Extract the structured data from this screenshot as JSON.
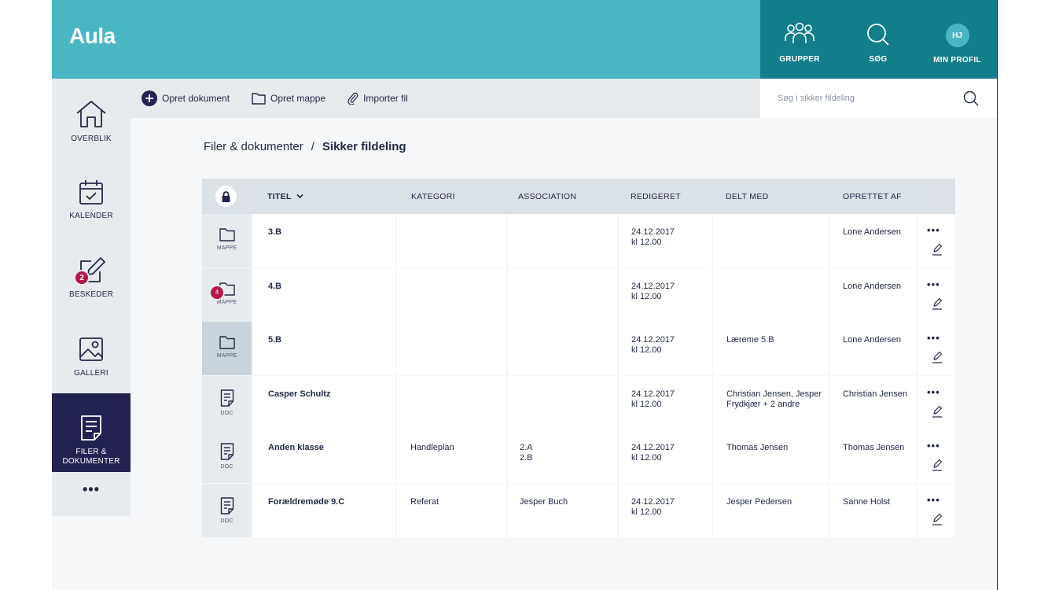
{
  "header": {
    "logo": "Aula",
    "nav": [
      {
        "label": "GRUPPER",
        "icon": "groups-icon"
      },
      {
        "label": "SØG",
        "icon": "search-icon"
      },
      {
        "label": "MIN PROFIL",
        "icon": "avatar",
        "initials": "HJ"
      }
    ]
  },
  "sidebar": {
    "items": [
      {
        "label": "OVERBLIK",
        "icon": "home-icon"
      },
      {
        "label": "KALENDER",
        "icon": "calendar-icon"
      },
      {
        "label": "BESKEDER",
        "icon": "message-icon",
        "badge": "2"
      },
      {
        "label": "GALLERI",
        "icon": "gallery-icon"
      },
      {
        "label_line1": "FILER &",
        "label_line2": "DOKUMENTER",
        "icon": "document-icon",
        "active": true
      }
    ],
    "more": "•••"
  },
  "toolbar": {
    "create_document": "Opret dokument",
    "create_folder": "Opret mappe",
    "import_file": "Importer fil"
  },
  "search": {
    "placeholder": "Søg i sikker fildeling"
  },
  "breadcrumb": {
    "parent": "Filer & dokumenter",
    "separator": "/",
    "current": "Sikker fildeling"
  },
  "table": {
    "columns": {
      "title": "TITEL",
      "category": "KATEGORI",
      "association": "ASSOCIATION",
      "edited": "REDIGERET",
      "shared_with": "DELT MED",
      "created_by": "OPRETTET AF"
    },
    "rows": [
      {
        "type": "MAPPE",
        "icon": "folder-icon",
        "title": "3.B",
        "category": "",
        "association": "",
        "edited": "24.12.2017\nkl 12.00",
        "shared_with": "",
        "created_by": "Lone Andersen"
      },
      {
        "type": "MAPPE",
        "icon": "folder-icon",
        "badge": "4",
        "title": "4.B",
        "category": "",
        "association": "",
        "edited": "24.12.2017\nkl 12.00",
        "shared_with": "",
        "created_by": "Lone Andersen"
      },
      {
        "type": "MAPPE",
        "icon": "folder-icon",
        "highlight": true,
        "title": "5.B",
        "category": "",
        "association": "",
        "edited": "24.12.2017\nkl 12.00",
        "shared_with": "Læreme 5.B",
        "created_by": "Lone Andersen"
      },
      {
        "type": "DOC",
        "icon": "document-icon",
        "title": "Casper Schultz",
        "category": "",
        "association": "",
        "edited": "24.12.2017\nkl 12.00",
        "shared_with": "Christian Jensen, Jesper Frydkjær + 2 andre",
        "created_by": "Christian Jensen"
      },
      {
        "type": "DOC",
        "icon": "document-icon",
        "title": "Anden klasse",
        "category": "Handleplan",
        "association": "2.A\n2.B",
        "edited": "24.12.2017\nkl 12.00",
        "shared_with": "Thomas Jensen",
        "created_by": "Thomas Jensen"
      },
      {
        "type": "DOC",
        "icon": "document-icon",
        "title": "Forældremøde 9.C",
        "category": "Referat",
        "association": "Jesper Buch",
        "edited": "24.12.2017\nkl 12.00",
        "shared_with": "Jesper Pedersen",
        "created_by": "Sanne Holst"
      }
    ],
    "row_actions": "•••"
  },
  "colors": {
    "header": "#4ab6c3",
    "header_dark": "#137e8a",
    "sidebar": "#e7ebee",
    "active": "#222350",
    "badge": "#b3174c"
  }
}
